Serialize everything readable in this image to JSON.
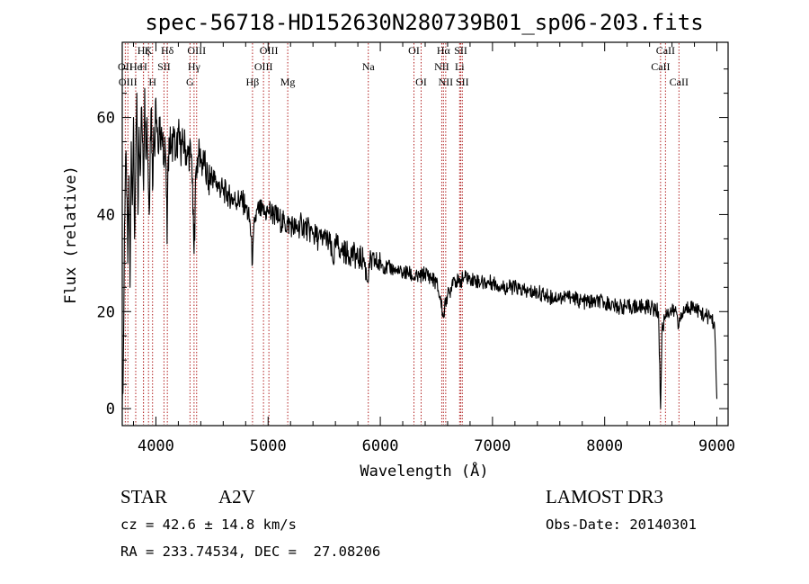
{
  "chart_data": {
    "type": "line",
    "title": "spec-56718-HD152630N280739B01_sp06-203.fits",
    "xlabel": "Wavelength (Å)",
    "ylabel": "Flux (relative)",
    "xlim": [
      3700,
      9100
    ],
    "ylim": [
      -3.5,
      75.5
    ],
    "x_ticks": [
      4000,
      5000,
      6000,
      7000,
      8000,
      9000
    ],
    "x_tick_labels": [
      "4000",
      "5000",
      "6000",
      "7000",
      "8000",
      "9000"
    ],
    "y_ticks": [
      0,
      20,
      40,
      60
    ],
    "y_tick_labels": [
      "0",
      "20",
      "40",
      "60"
    ],
    "grid": false,
    "series": [
      {
        "name": "flux",
        "x": [
          3700,
          3710,
          3720,
          3730,
          3740,
          3750,
          3760,
          3770,
          3780,
          3790,
          3800,
          3810,
          3820,
          3830,
          3840,
          3850,
          3860,
          3870,
          3880,
          3890,
          3900,
          3910,
          3920,
          3930,
          3940,
          3950,
          3960,
          3970,
          3980,
          3990,
          4000,
          4010,
          4020,
          4030,
          4040,
          4050,
          4060,
          4070,
          4080,
          4090,
          4100,
          4110,
          4120,
          4140,
          4160,
          4180,
          4200,
          4220,
          4240,
          4260,
          4280,
          4300,
          4320,
          4330,
          4340,
          4350,
          4360,
          4380,
          4400,
          4430,
          4470,
          4500,
          4550,
          4600,
          4650,
          4700,
          4750,
          4800,
          4840,
          4861,
          4880,
          4920,
          4960,
          5000,
          5050,
          5100,
          5150,
          5200,
          5250,
          5300,
          5350,
          5400,
          5450,
          5500,
          5550,
          5580,
          5600,
          5650,
          5700,
          5750,
          5800,
          5850,
          5890,
          5900,
          5950,
          6000,
          6050,
          6100,
          6150,
          6200,
          6250,
          6300,
          6350,
          6400,
          6450,
          6500,
          6540,
          6563,
          6590,
          6620,
          6650,
          6700,
          6750,
          6800,
          6900,
          7000,
          7100,
          7200,
          7300,
          7400,
          7500,
          7600,
          7700,
          7800,
          7900,
          8000,
          8100,
          8200,
          8300,
          8400,
          8480,
          8498,
          8510,
          8540,
          8560,
          8600,
          8640,
          8662,
          8700,
          8750,
          8800,
          8850,
          8900,
          8950,
          8980,
          9000
        ],
        "values": [
          0,
          10,
          38,
          52,
          44,
          30,
          48,
          25,
          55,
          42,
          60,
          35,
          50,
          65,
          40,
          58,
          48,
          62,
          55,
          45,
          66,
          52,
          60,
          50,
          40,
          56,
          62,
          45,
          58,
          52,
          64,
          57,
          53,
          60,
          55,
          58,
          54,
          52,
          56,
          50,
          34,
          52,
          55,
          54,
          56,
          52,
          57,
          53,
          55,
          54,
          52,
          53,
          51,
          40,
          32,
          42,
          50,
          52,
          51,
          50,
          47,
          48,
          46,
          45,
          44,
          43,
          43,
          42,
          38,
          30,
          39,
          41,
          40,
          41,
          40,
          39,
          38,
          38,
          37,
          38,
          37,
          36,
          35,
          35,
          34,
          30,
          34,
          33,
          32,
          32,
          31,
          31,
          26,
          30,
          30,
          30,
          29,
          29,
          28,
          28,
          28,
          27,
          27,
          28,
          27,
          26,
          22,
          19,
          23,
          24,
          27,
          26,
          27,
          27,
          26,
          26,
          25,
          25,
          24,
          24,
          23,
          23,
          23,
          22,
          22,
          22,
          21,
          21,
          21,
          21,
          20,
          0,
          16,
          19,
          20,
          20,
          20,
          17,
          20,
          21,
          21,
          20,
          19,
          19,
          17,
          2
        ]
      }
    ],
    "spectral_lines": [
      {
        "label": "Hζ",
        "x": 3889,
        "row": 1
      },
      {
        "label": "K",
        "x": 3934,
        "row": 1
      },
      {
        "label": "Hδ",
        "x": 4102,
        "row": 1
      },
      {
        "label": "OIII",
        "x": 4363,
        "row": 1
      },
      {
        "label": "OIII",
        "x": 5007,
        "row": 1
      },
      {
        "label": "OI",
        "x": 6300,
        "row": 1
      },
      {
        "label": "Hα",
        "x": 6563,
        "row": 1
      },
      {
        "label": "SII",
        "x": 6717,
        "row": 1
      },
      {
        "label": "CaII",
        "x": 8542,
        "row": 1
      },
      {
        "label": "OII",
        "x": 3727,
        "row": 2
      },
      {
        "label": "He",
        "x": 3820,
        "row": 2
      },
      {
        "label": "H",
        "x": 3889,
        "row": 2
      },
      {
        "label": "SII",
        "x": 4072,
        "row": 2
      },
      {
        "label": "Hγ",
        "x": 4340,
        "row": 2
      },
      {
        "label": "OIII",
        "x": 4959,
        "row": 2
      },
      {
        "label": "Na",
        "x": 5893,
        "row": 2
      },
      {
        "label": "NII",
        "x": 6548,
        "row": 2
      },
      {
        "label": "Li",
        "x": 6707,
        "row": 2
      },
      {
        "label": "CaII",
        "x": 8498,
        "row": 2
      },
      {
        "label": "OIII",
        "x": 3750,
        "row": 3
      },
      {
        "label": "H",
        "x": 3970,
        "row": 3
      },
      {
        "label": "G",
        "x": 4304,
        "row": 3
      },
      {
        "label": "Hβ",
        "x": 4861,
        "row": 3
      },
      {
        "label": "Mg",
        "x": 5175,
        "row": 3
      },
      {
        "label": "OI",
        "x": 6364,
        "row": 3
      },
      {
        "label": "NII",
        "x": 6583,
        "row": 3
      },
      {
        "label": "SII",
        "x": 6731,
        "row": 3
      },
      {
        "label": "CaII",
        "x": 8662,
        "row": 3
      }
    ],
    "colors": {
      "spectrum": "#000000",
      "lines": "#b22222",
      "frame": "#000000"
    }
  },
  "info": {
    "object_class": "STAR",
    "subclass": "A2V",
    "redshift": "cz = 42.6 ± 14.8 km/s",
    "coordinates": "RA = 233.74534, DEC =  27.08206",
    "survey": "LAMOST DR3",
    "obs_date": "Obs-Date: 20140301"
  }
}
